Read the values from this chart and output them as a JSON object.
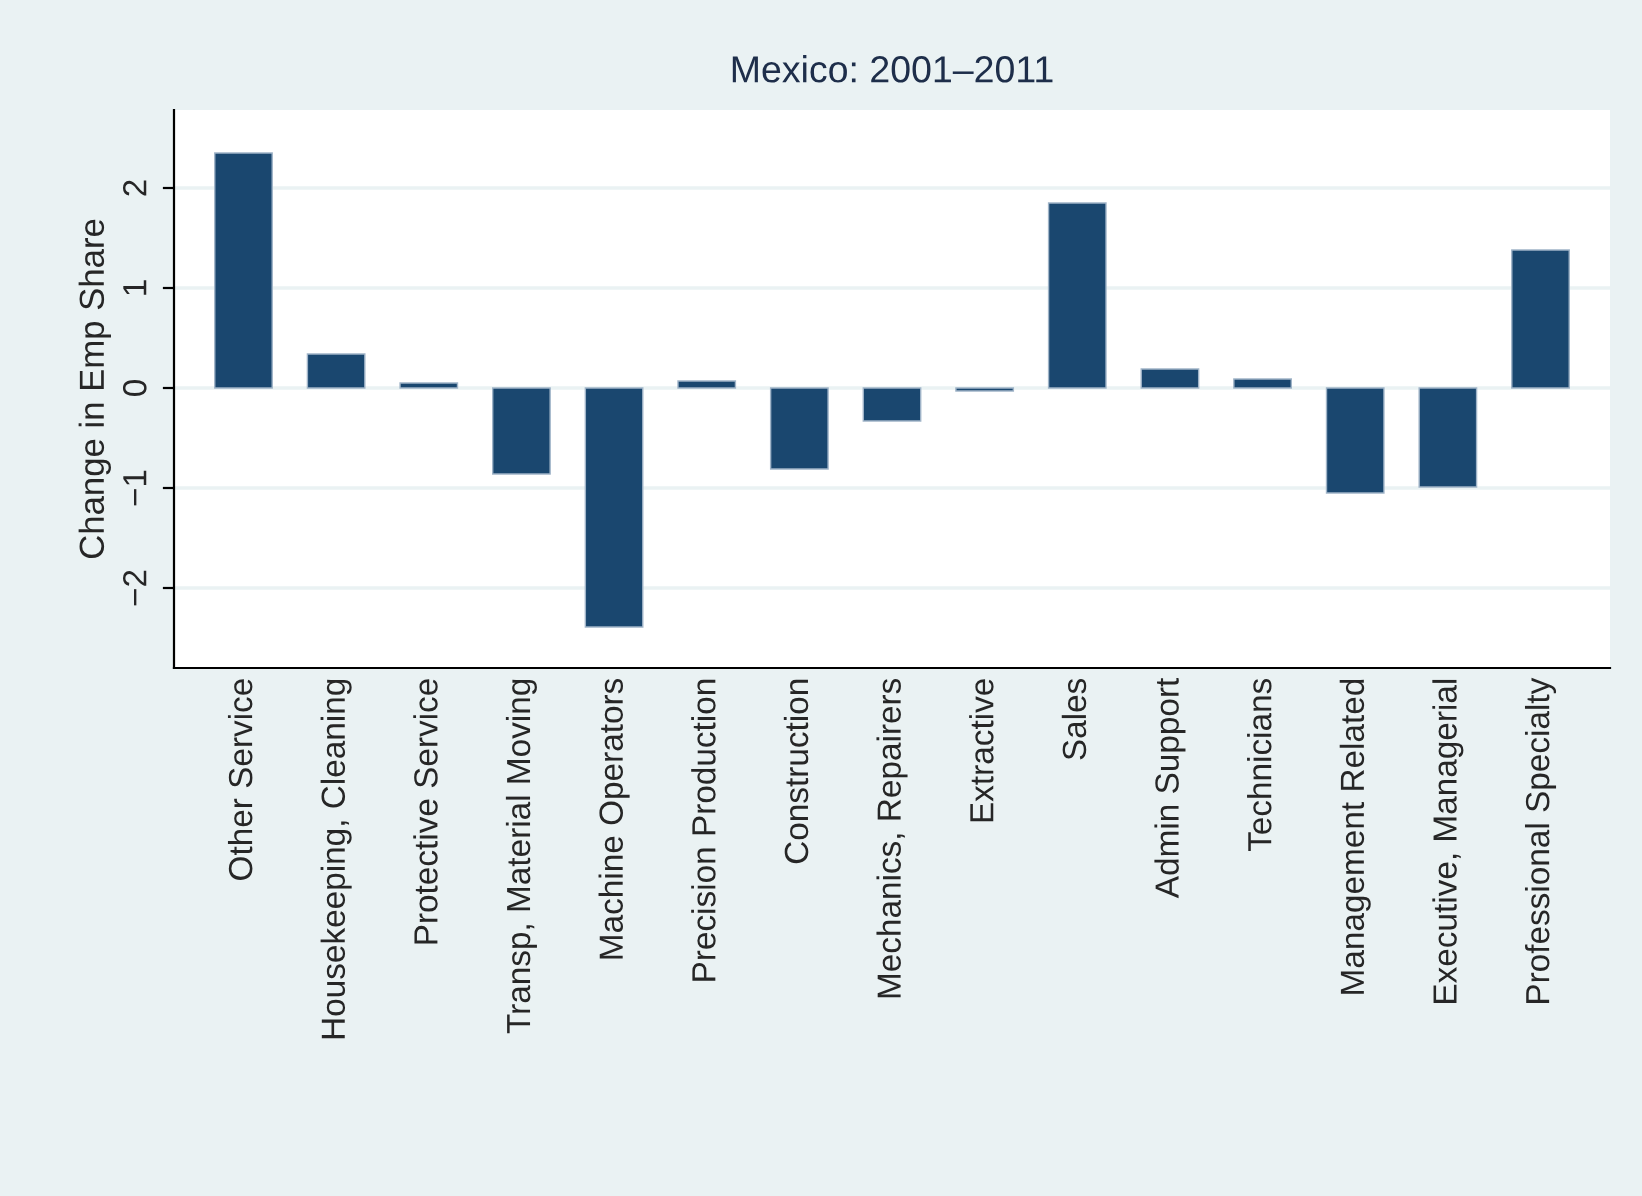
{
  "chart_data": {
    "type": "bar",
    "title": "Mexico: 2001–2011",
    "ylabel": "Change in Emp Share",
    "categories": [
      "Other Service",
      "Housekeeping, Cleaning",
      "Protective Service",
      "Transp, Material Moving",
      "Machine Operators",
      "Precision Production",
      "Construction",
      "Mechanics, Repairers",
      "Extractive",
      "Sales",
      "Admin Support",
      "Technicians",
      "Management Related",
      "Executive, Managerial",
      "Professional Specialty"
    ],
    "values": [
      2.35,
      0.34,
      0.05,
      -0.86,
      -2.39,
      0.07,
      -0.81,
      -0.33,
      -0.03,
      1.85,
      0.19,
      0.09,
      -1.05,
      -0.99,
      1.38
    ],
    "color": "#1a476f",
    "ylim": [
      -2.8,
      2.78
    ],
    "yticks": [
      {
        "value": -2,
        "label": "−2"
      },
      {
        "value": -1,
        "label": "−1"
      },
      0,
      1,
      2
    ],
    "grid": "y",
    "legend": false
  }
}
